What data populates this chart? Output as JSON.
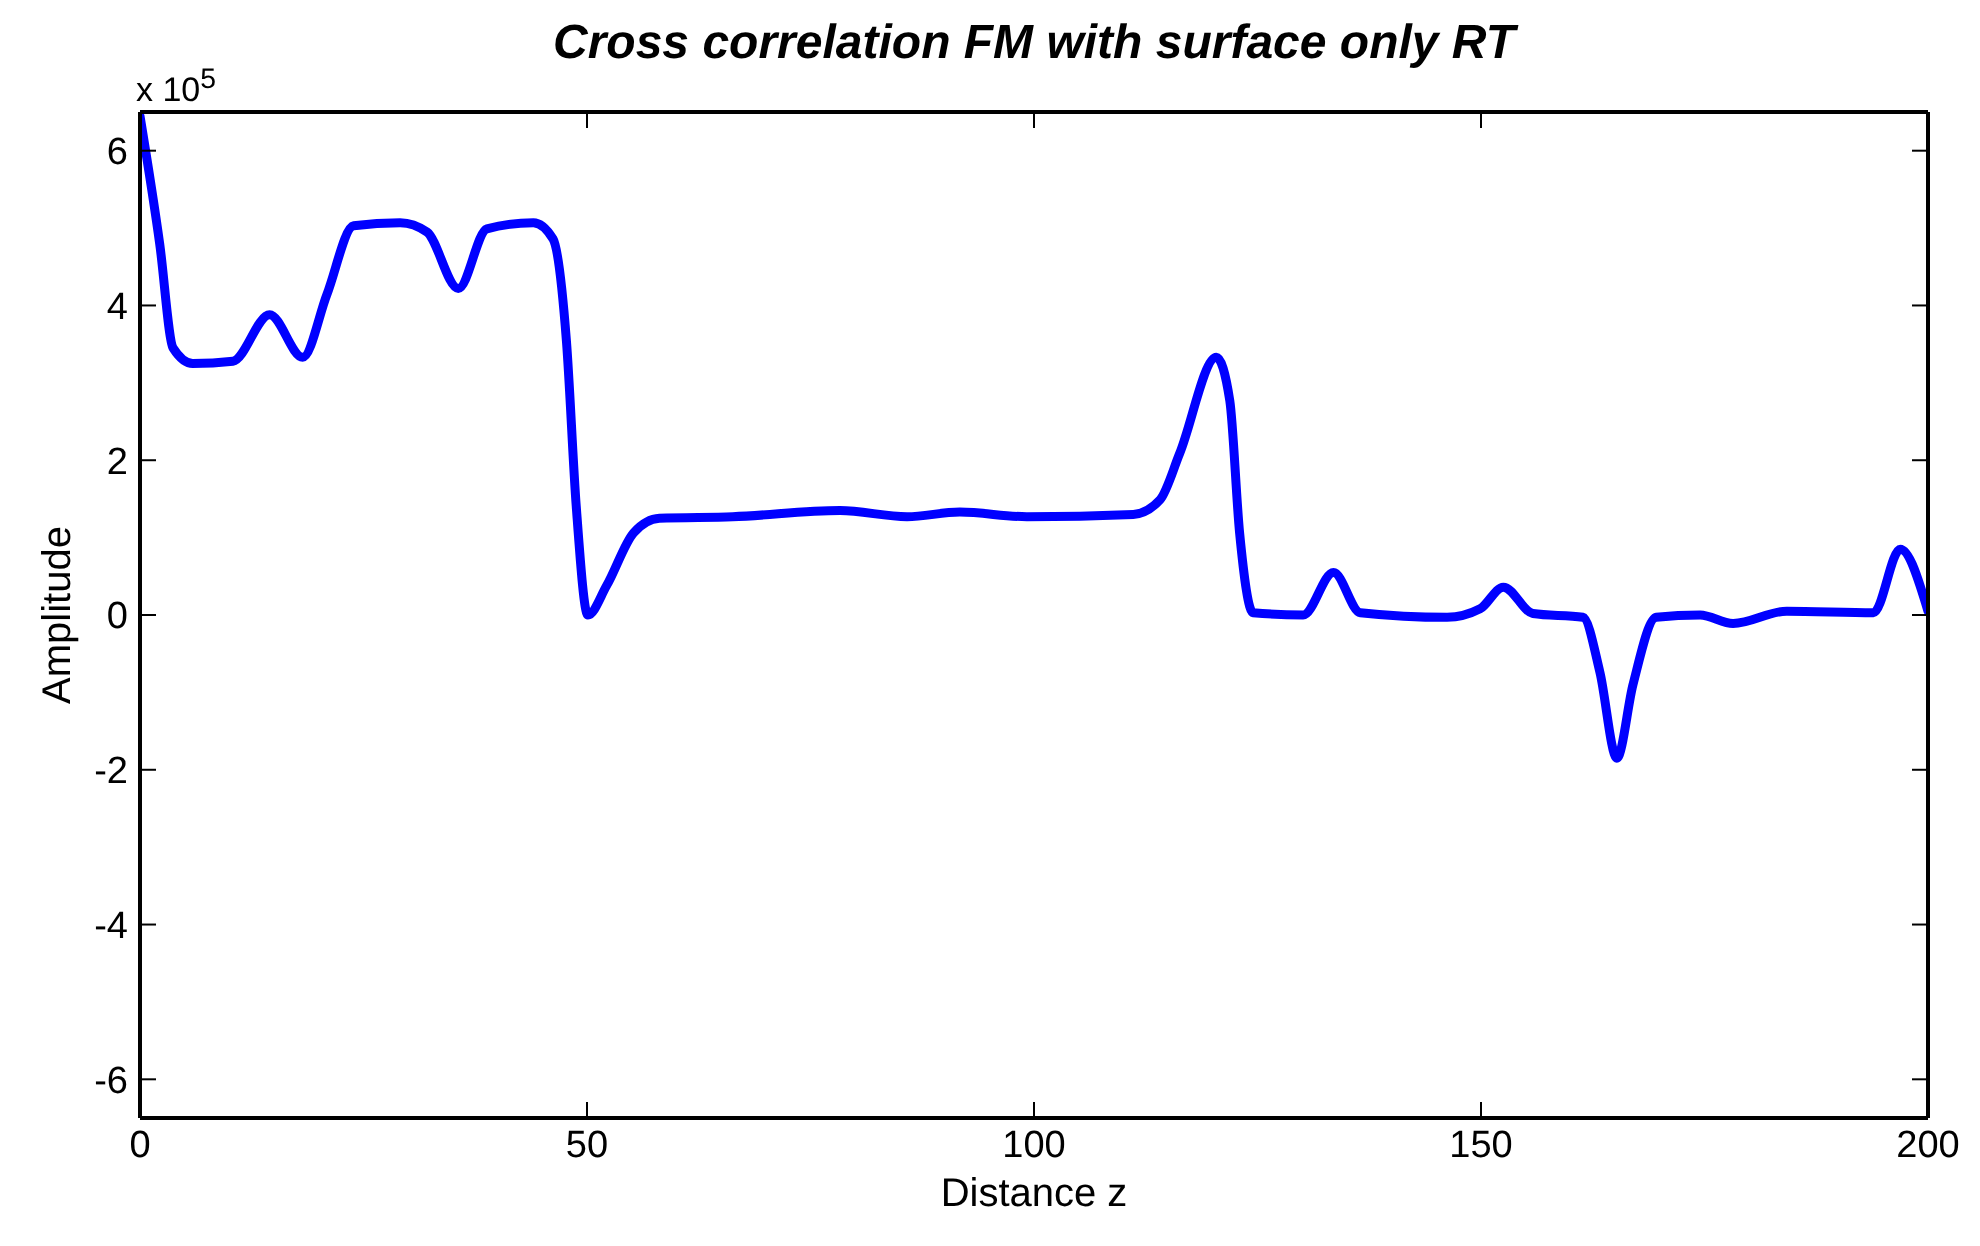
{
  "chart_data": {
    "type": "line",
    "title": "Cross correlation FM with surface only RT",
    "xlabel": "Distance z",
    "ylabel": "Amplitude",
    "annotations": [
      "x 10$^{5}$"
    ],
    "xlim": [
      0,
      200
    ],
    "xticks": [
      0,
      50,
      100,
      150,
      200
    ],
    "ylim": [
      -6.5,
      6.5
    ],
    "yticks": [
      -6,
      -4,
      -2,
      0,
      2,
      4,
      6
    ],
    "grid": false,
    "legend": false,
    "series": [
      {
        "color": "#0000ff",
        "x": [
          0,
          2.2,
          3.7,
          5.9,
          10.4,
          14.5,
          18.2,
          20.9,
          23.9,
          29.1,
          32.1,
          35.6,
          38.8,
          44,
          46.2,
          47.7,
          48.8,
          50.1,
          52.2,
          55.2,
          58.1,
          66.3,
          78.3,
          85.8,
          91.7,
          99.2,
          111.1,
          114.1,
          116.3,
          120.4,
          121.9,
          123,
          124.5,
          130.1,
          133.5,
          136.5,
          146.2,
          149.9,
          152.5,
          155.8,
          161.4,
          163.3,
          165.2,
          167,
          169.6,
          174.5,
          178.2,
          184.2,
          193.9,
          196.9,
          200
        ],
        "values": [
          6.45,
          4.8,
          3.45,
          3.25,
          3.28,
          3.88,
          3.33,
          4.14,
          5.03,
          5.07,
          4.95,
          4.22,
          4.99,
          5.07,
          4.86,
          3.54,
          1.4,
          0,
          0.38,
          1.06,
          1.25,
          1.27,
          1.35,
          1.27,
          1.33,
          1.27,
          1.3,
          1.49,
          2.09,
          3.33,
          2.77,
          1.06,
          0.03,
          0,
          0.55,
          0.03,
          -0.03,
          0.08,
          0.36,
          0.02,
          -0.03,
          -0.74,
          -1.85,
          -0.9,
          -0.03,
          0,
          -0.11,
          0.05,
          0.03,
          0.85,
          0.05
        ]
      }
    ]
  }
}
